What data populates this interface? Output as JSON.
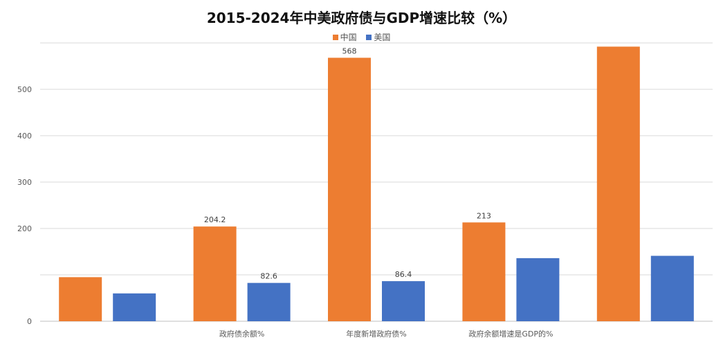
{
  "chart_data": {
    "type": "bar",
    "title": "2015-2024年中美政府债与GDP增速比较（%）",
    "categories": [
      "",
      "政府债余额%",
      "年度新增政府债%",
      "政府余额增速是GDP的%",
      ""
    ],
    "series": [
      {
        "name": "中国",
        "color": "#ED7D31",
        "values": [
          95,
          204.2,
          568,
          213,
          592
        ]
      },
      {
        "name": "美国",
        "color": "#4472C4",
        "values": [
          60,
          82.6,
          86.4,
          136,
          141
        ]
      }
    ],
    "data_labels": [
      [
        "",
        "204.2",
        "568",
        "213",
        ""
      ],
      [
        "",
        "82.6",
        "86.4",
        "",
        ""
      ]
    ],
    "y_ticks": [
      0,
      200,
      300,
      400,
      500
    ],
    "ylim": [
      0,
      600
    ],
    "grid": true,
    "legend": "top"
  }
}
